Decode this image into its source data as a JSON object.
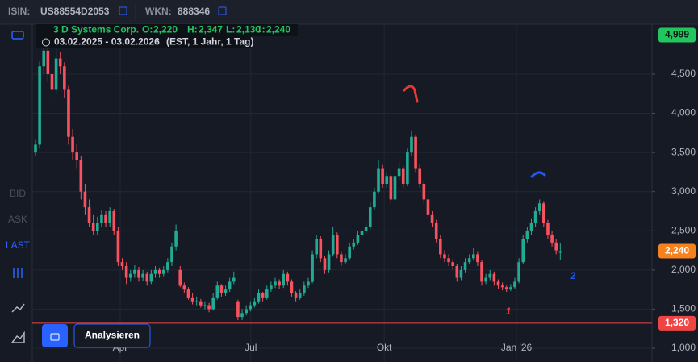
{
  "header": {
    "isin_label": "ISIN:",
    "isin": "US88554D2053",
    "wkn_label": "WKN:",
    "wkn": "888346"
  },
  "toolbar": {
    "bid": "BID",
    "ask": "ASK",
    "last": "LAST"
  },
  "legend": {
    "name": "3 D Systems Corp.",
    "o_label": "O:",
    "o": "2,220",
    "h_label": "H:",
    "h": "2,347",
    "l_label": "L:",
    "l": "2,130",
    "c_label": "C:",
    "c": "2,240",
    "range": "03.02.2025 - 03.02.2026",
    "info": "(EST, 1 Jahr, 1 Tag)"
  },
  "button": "Analysieren",
  "chart_data": {
    "type": "candlestick",
    "up_color": "#22ab94",
    "down_color": "#f7525f",
    "grid": true,
    "ylim": [
      0.825,
      5.138
    ],
    "yticks": [
      {
        "value": 1,
        "label": "1,000"
      },
      {
        "value": 1.5,
        "label": "1,500"
      },
      {
        "value": 2,
        "label": "2,000"
      },
      {
        "value": 2.5,
        "label": "2,500"
      },
      {
        "value": 3,
        "label": "3,000"
      },
      {
        "value": 3.5,
        "label": "3,500"
      },
      {
        "value": 4,
        "label": "4,000"
      },
      {
        "value": 4.5,
        "label": "4,500"
      }
    ],
    "xlim": [
      -0.78,
      149.2
    ],
    "xticks": [
      {
        "value": 20.5,
        "label": "Apr"
      },
      {
        "value": 52.1,
        "label": "Jul"
      },
      {
        "value": 84.4,
        "label": "Okt"
      },
      {
        "value": 116.4,
        "label": "Jan '26"
      }
    ],
    "levels": [
      {
        "value": 4.999,
        "label": "4,999",
        "color": "#22c55e"
      },
      {
        "value": 2.24,
        "label": "2,240",
        "color": "#f5821f"
      },
      {
        "value": 1.32,
        "label": "1,320",
        "color": "#ef4444"
      }
    ],
    "annotations": [
      {
        "text": "1",
        "color": "#e53935"
      },
      {
        "text": "2",
        "color": "#1e5bff"
      }
    ],
    "candles": [
      [
        3.5,
        3.66,
        3.45,
        3.6
      ],
      [
        3.6,
        4.66,
        3.55,
        4.6
      ],
      [
        4.6,
        4.86,
        4.5,
        4.8
      ],
      [
        4.8,
        4.85,
        4.4,
        4.5
      ],
      [
        4.5,
        4.6,
        4.2,
        4.3
      ],
      [
        4.3,
        4.82,
        4.25,
        4.7
      ],
      [
        4.7,
        4.78,
        4.5,
        4.6
      ],
      [
        4.6,
        4.65,
        4.2,
        4.3
      ],
      [
        4.3,
        4.35,
        3.6,
        3.7
      ],
      [
        3.7,
        3.8,
        3.4,
        3.5
      ],
      [
        3.5,
        3.6,
        3.3,
        3.4
      ],
      [
        3.4,
        3.45,
        2.9,
        3.0
      ],
      [
        3.0,
        3.1,
        2.7,
        2.8
      ],
      [
        2.8,
        2.9,
        2.55,
        2.6
      ],
      [
        2.6,
        2.7,
        2.45,
        2.5
      ],
      [
        2.5,
        2.68,
        2.45,
        2.6
      ],
      [
        2.6,
        2.76,
        2.55,
        2.7
      ],
      [
        2.7,
        2.75,
        2.55,
        2.6
      ],
      [
        2.6,
        2.8,
        2.55,
        2.75
      ],
      [
        2.75,
        2.78,
        2.45,
        2.5
      ],
      [
        2.5,
        2.55,
        2.05,
        2.1
      ],
      [
        2.1,
        2.15,
        2.0,
        2.05
      ],
      [
        2.05,
        2.1,
        1.82,
        1.9
      ],
      [
        1.9,
        2.0,
        1.85,
        1.95
      ],
      [
        1.95,
        2.06,
        1.9,
        2.0
      ],
      [
        2.0,
        2.04,
        1.85,
        1.9
      ],
      [
        1.9,
        2.0,
        1.86,
        1.95
      ],
      [
        1.95,
        1.98,
        1.8,
        1.85
      ],
      [
        1.85,
        2.0,
        1.82,
        1.95
      ],
      [
        1.95,
        2.05,
        1.9,
        2.0
      ],
      [
        2.0,
        2.03,
        1.9,
        1.95
      ],
      [
        1.95,
        2.05,
        1.92,
        2.0
      ],
      [
        2.0,
        2.15,
        1.97,
        2.1
      ],
      [
        2.1,
        2.35,
        2.05,
        2.3
      ],
      [
        2.3,
        2.58,
        2.25,
        2.5
      ],
      [
        2.0,
        2.05,
        1.78,
        1.8
      ],
      [
        1.8,
        1.84,
        1.7,
        1.75
      ],
      [
        1.75,
        1.78,
        1.62,
        1.65
      ],
      [
        1.65,
        1.7,
        1.56,
        1.6
      ],
      [
        1.6,
        1.66,
        1.55,
        1.6
      ],
      [
        1.6,
        1.63,
        1.52,
        1.55
      ],
      [
        1.55,
        1.6,
        1.5,
        1.55
      ],
      [
        1.55,
        1.58,
        1.46,
        1.5
      ],
      [
        1.5,
        1.7,
        1.48,
        1.65
      ],
      [
        1.65,
        1.85,
        1.62,
        1.8
      ],
      [
        1.8,
        1.82,
        1.66,
        1.7
      ],
      [
        1.7,
        1.8,
        1.67,
        1.75
      ],
      [
        1.75,
        1.9,
        1.72,
        1.85
      ],
      [
        1.85,
        1.98,
        1.82,
        1.9
      ],
      [
        1.6,
        1.62,
        1.36,
        1.4
      ],
      [
        1.4,
        1.5,
        1.36,
        1.45
      ],
      [
        1.45,
        1.55,
        1.42,
        1.5
      ],
      [
        1.5,
        1.6,
        1.47,
        1.55
      ],
      [
        1.55,
        1.64,
        1.52,
        1.6
      ],
      [
        1.6,
        1.75,
        1.57,
        1.7
      ],
      [
        1.7,
        1.72,
        1.6,
        1.65
      ],
      [
        1.65,
        1.8,
        1.62,
        1.75
      ],
      [
        1.75,
        1.85,
        1.72,
        1.8
      ],
      [
        1.8,
        1.9,
        1.77,
        1.85
      ],
      [
        1.85,
        1.88,
        1.76,
        1.8
      ],
      [
        1.8,
        2.0,
        1.77,
        1.95
      ],
      [
        1.95,
        1.98,
        1.8,
        1.85
      ],
      [
        1.85,
        1.88,
        1.66,
        1.7
      ],
      [
        1.7,
        1.73,
        1.6,
        1.65
      ],
      [
        1.65,
        1.75,
        1.62,
        1.7
      ],
      [
        1.7,
        1.85,
        1.67,
        1.8
      ],
      [
        1.8,
        1.9,
        1.77,
        1.85
      ],
      [
        1.85,
        2.25,
        1.83,
        2.2
      ],
      [
        2.2,
        2.45,
        2.15,
        2.4
      ],
      [
        2.4,
        2.43,
        2.1,
        2.15
      ],
      [
        2.15,
        2.18,
        1.95,
        2.0
      ],
      [
        2.0,
        2.25,
        1.97,
        2.2
      ],
      [
        2.2,
        2.55,
        2.17,
        2.45
      ],
      [
        2.45,
        2.48,
        2.15,
        2.2
      ],
      [
        2.2,
        2.24,
        2.05,
        2.1
      ],
      [
        2.1,
        2.2,
        2.07,
        2.15
      ],
      [
        2.15,
        2.35,
        2.12,
        2.3
      ],
      [
        2.3,
        2.4,
        2.26,
        2.35
      ],
      [
        2.35,
        2.5,
        2.32,
        2.45
      ],
      [
        2.45,
        2.55,
        2.42,
        2.5
      ],
      [
        2.5,
        2.6,
        2.46,
        2.55
      ],
      [
        2.55,
        2.86,
        2.52,
        2.8
      ],
      [
        2.8,
        3.05,
        2.76,
        3.0
      ],
      [
        3.0,
        3.4,
        2.97,
        3.3
      ],
      [
        3.3,
        3.34,
        3.05,
        3.1
      ],
      [
        3.1,
        3.25,
        3.05,
        3.2
      ],
      [
        3.2,
        3.22,
        2.85,
        2.9
      ],
      [
        2.9,
        3.25,
        2.88,
        3.2
      ],
      [
        3.2,
        3.38,
        3.15,
        3.3
      ],
      [
        3.3,
        3.33,
        3.05,
        3.1
      ],
      [
        3.1,
        3.55,
        3.07,
        3.5
      ],
      [
        3.5,
        3.78,
        3.45,
        3.7
      ],
      [
        3.7,
        3.72,
        3.25,
        3.3
      ],
      [
        3.3,
        3.35,
        3.05,
        3.1
      ],
      [
        3.1,
        3.14,
        2.85,
        2.9
      ],
      [
        2.9,
        2.95,
        2.65,
        2.7
      ],
      [
        2.7,
        2.75,
        2.55,
        2.6
      ],
      [
        2.6,
        2.64,
        2.35,
        2.4
      ],
      [
        2.4,
        2.45,
        2.15,
        2.2
      ],
      [
        2.2,
        2.25,
        2.1,
        2.15
      ],
      [
        2.15,
        2.2,
        2.05,
        2.1
      ],
      [
        2.1,
        2.14,
        2.0,
        2.05
      ],
      [
        2.05,
        2.08,
        1.85,
        1.9
      ],
      [
        1.9,
        2.05,
        1.87,
        2.0
      ],
      [
        2.0,
        2.15,
        1.97,
        2.1
      ],
      [
        2.1,
        2.2,
        2.07,
        2.15
      ],
      [
        2.15,
        2.28,
        2.12,
        2.2
      ],
      [
        2.2,
        2.24,
        2.05,
        2.1
      ],
      [
        2.1,
        2.13,
        1.8,
        1.85
      ],
      [
        1.85,
        1.95,
        1.82,
        1.9
      ],
      [
        1.9,
        2.0,
        1.87,
        1.95
      ],
      [
        1.95,
        1.98,
        1.8,
        1.85
      ],
      [
        1.85,
        1.88,
        1.76,
        1.8
      ],
      [
        1.8,
        1.84,
        1.74,
        1.78
      ],
      [
        1.78,
        1.8,
        1.72,
        1.75
      ],
      [
        1.75,
        1.82,
        1.73,
        1.78
      ],
      [
        1.78,
        1.9,
        1.76,
        1.85
      ],
      [
        1.85,
        2.15,
        1.83,
        2.1
      ],
      [
        2.1,
        2.45,
        2.07,
        2.4
      ],
      [
        2.4,
        2.55,
        2.35,
        2.5
      ],
      [
        2.5,
        2.65,
        2.45,
        2.6
      ],
      [
        2.6,
        2.8,
        2.55,
        2.75
      ],
      [
        2.75,
        2.9,
        2.7,
        2.85
      ],
      [
        2.85,
        2.88,
        2.55,
        2.6
      ],
      [
        2.6,
        2.64,
        2.4,
        2.45
      ],
      [
        2.45,
        2.5,
        2.3,
        2.35
      ],
      [
        2.35,
        2.4,
        2.2,
        2.25
      ],
      [
        2.22,
        2.347,
        2.13,
        2.24
      ]
    ]
  }
}
